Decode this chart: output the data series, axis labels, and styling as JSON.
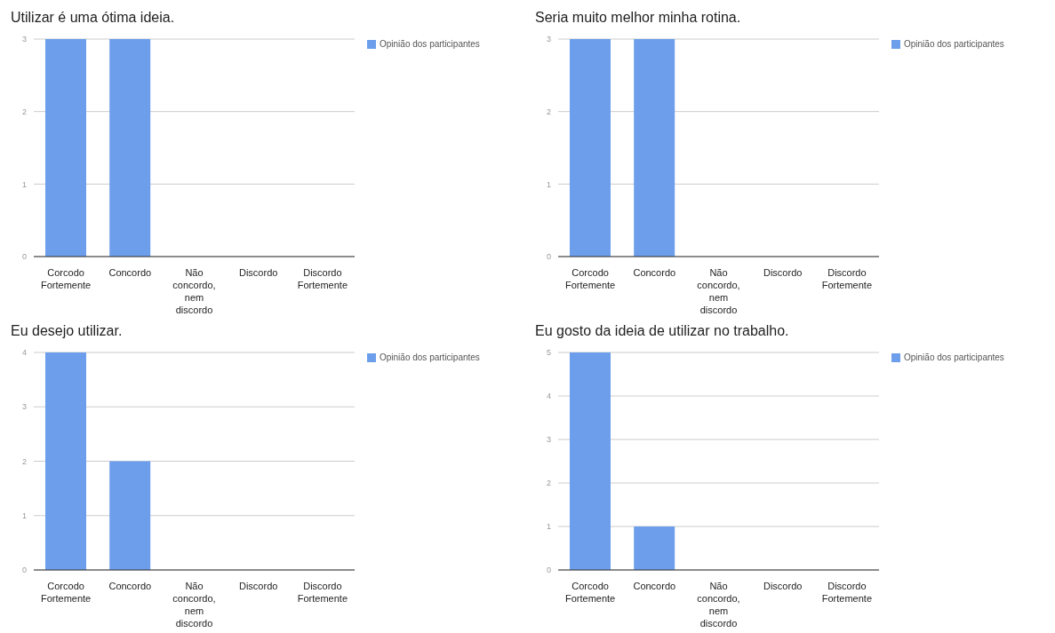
{
  "chart_data": [
    {
      "type": "bar",
      "title": "Utilizar é uma ótima ideia.",
      "categories": [
        "Corcodo Fortemente",
        "Concordo",
        "Não concordo, nem discordo",
        "Discordo",
        "Discordo Fortemente"
      ],
      "series": [
        {
          "name": "Opinião dos participantes",
          "color": "#6d9eeb",
          "values": [
            3,
            3,
            0,
            0,
            0
          ]
        }
      ],
      "ylim": [
        0,
        3
      ],
      "yticks": [
        0,
        1,
        2,
        3
      ],
      "grid": "y",
      "legend": "top right"
    },
    {
      "type": "bar",
      "title": "Seria muito melhor minha rotina.",
      "categories": [
        "Corcodo Fortemente",
        "Concordo",
        "Não concordo, nem discordo",
        "Discordo",
        "Discordo Fortemente"
      ],
      "series": [
        {
          "name": "Opinião dos participantes",
          "color": "#6d9eeb",
          "values": [
            3,
            3,
            0,
            0,
            0
          ]
        }
      ],
      "ylim": [
        0,
        3
      ],
      "yticks": [
        0,
        1,
        2,
        3
      ],
      "grid": "y",
      "legend": "top right"
    },
    {
      "type": "bar",
      "title": "Eu desejo utilizar.",
      "categories": [
        "Corcodo Fortemente",
        "Concordo",
        "Não concordo, nem discordo",
        "Discordo",
        "Discordo Fortemente"
      ],
      "series": [
        {
          "name": "Opinião dos participantes",
          "color": "#6d9eeb",
          "values": [
            4,
            2,
            0,
            0,
            0
          ]
        }
      ],
      "ylim": [
        0,
        4
      ],
      "yticks": [
        0,
        1,
        2,
        3,
        4
      ],
      "grid": "y",
      "legend": "top right"
    },
    {
      "type": "bar",
      "title": "Eu gosto da ideia de utilizar no trabalho.",
      "categories": [
        "Corcodo Fortemente",
        "Concordo",
        "Não concordo, nem discordo",
        "Discordo",
        "Discordo Fortemente"
      ],
      "series": [
        {
          "name": "Opinião dos participantes",
          "color": "#6d9eeb",
          "values": [
            5,
            1,
            0,
            0,
            0
          ]
        }
      ],
      "ylim": [
        0,
        5
      ],
      "yticks": [
        0,
        1,
        2,
        3,
        4,
        5
      ],
      "grid": "y",
      "legend": "top right"
    }
  ]
}
